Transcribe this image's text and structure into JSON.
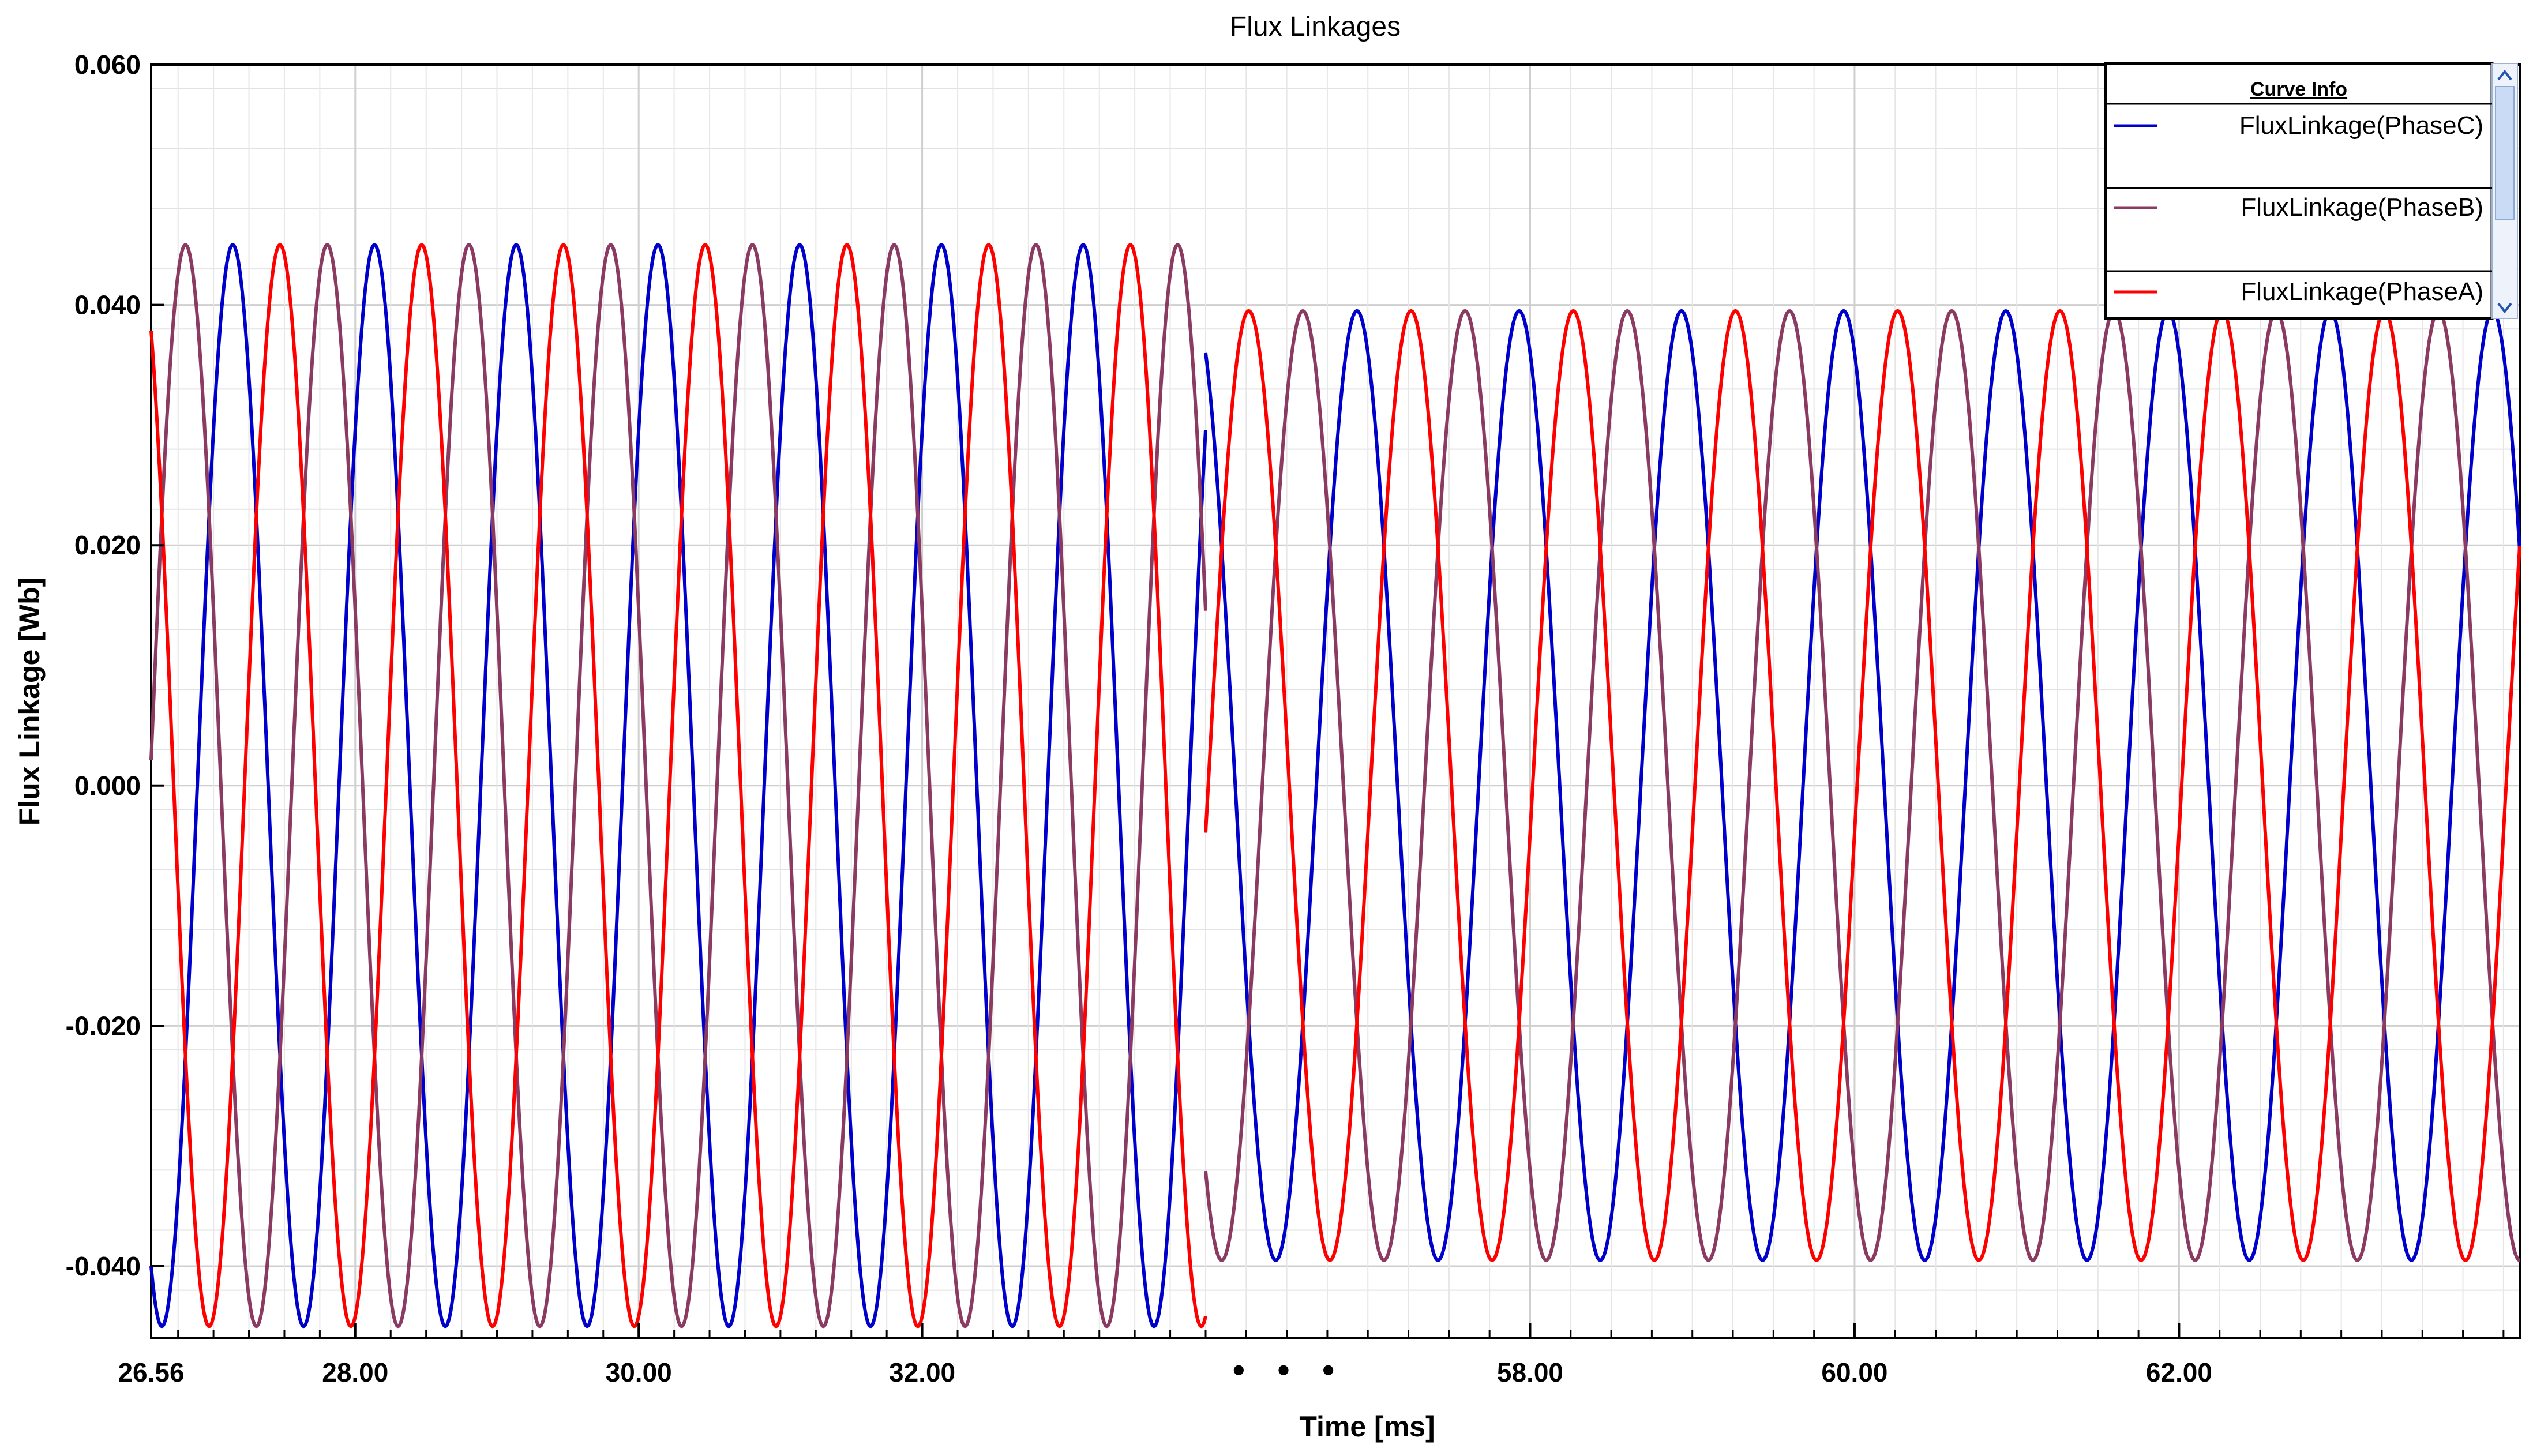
{
  "chart_data": {
    "type": "line",
    "title": "Flux Linkages",
    "xlabel": "Time [ms]",
    "ylabel": "Flux Linkage [Wb]",
    "ylim": [
      -0.046,
      0.06
    ],
    "y_ticks": [
      "0.060",
      "0.040",
      "0.020",
      "0.000",
      "-0.020",
      "-0.040"
    ],
    "x_segments": [
      {
        "xlim": [
          26.56,
          34.0
        ],
        "amplitude": 0.045,
        "offset": 0.0,
        "first_sample": [
          -0.04,
          0.004,
          0.036
        ],
        "tick_labels": [
          {
            "value": 26.56,
            "label": "26.56"
          },
          {
            "value": 28.0,
            "label": "28.00"
          },
          {
            "value": 30.0,
            "label": "30.00"
          },
          {
            "value": 32.0,
            "label": "32.00"
          }
        ]
      },
      {
        "xlim": [
          56.0,
          64.1
        ],
        "amplitude": 0.0395,
        "offset": 0.0,
        "first_sample": [
          0.036,
          0.037,
          -0.038
        ],
        "tick_labels": [
          {
            "value": 58.0,
            "label": "58.00"
          },
          {
            "value": 60.0,
            "label": "60.00"
          },
          {
            "value": 62.0,
            "label": "62.00"
          }
        ]
      }
    ],
    "axis_break": "• • •",
    "grid": true,
    "legend": {
      "title": "Curve Info",
      "placement": "top-right",
      "entries": [
        {
          "name": "FluxLinkage(PhaseC)",
          "color": "#0000cc"
        },
        {
          "name": "FluxLinkage(PhaseB)",
          "color": "#8b3a62"
        },
        {
          "name": "FluxLinkage(PhaseA)",
          "color": "#ff0000"
        }
      ]
    },
    "series": [
      {
        "name": "FluxLinkage(PhaseC)",
        "color": "#0000cc"
      },
      {
        "name": "FluxLinkage(PhaseB)",
        "color": "#8b3a62"
      },
      {
        "name": "FluxLinkage(PhaseA)",
        "color": "#ff0000"
      }
    ]
  }
}
